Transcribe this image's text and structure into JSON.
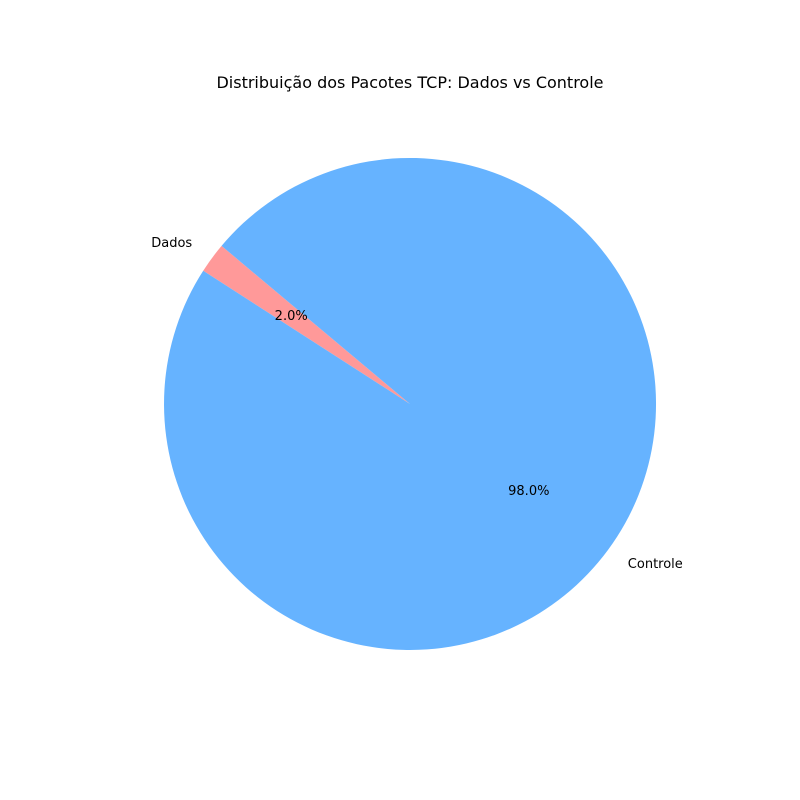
{
  "chart_data": {
    "type": "pie",
    "title": "Distribuição dos Pacotes TCP: Dados vs Controle",
    "categories": [
      "Dados",
      "Controle"
    ],
    "values": [
      2.0,
      98.0
    ],
    "percent_labels": [
      "2.0%",
      "98.0%"
    ],
    "colors": [
      "#ff9999",
      "#66b3ff"
    ],
    "start_angle_deg": 140,
    "direction": "counterclockwise",
    "legend": "none"
  }
}
